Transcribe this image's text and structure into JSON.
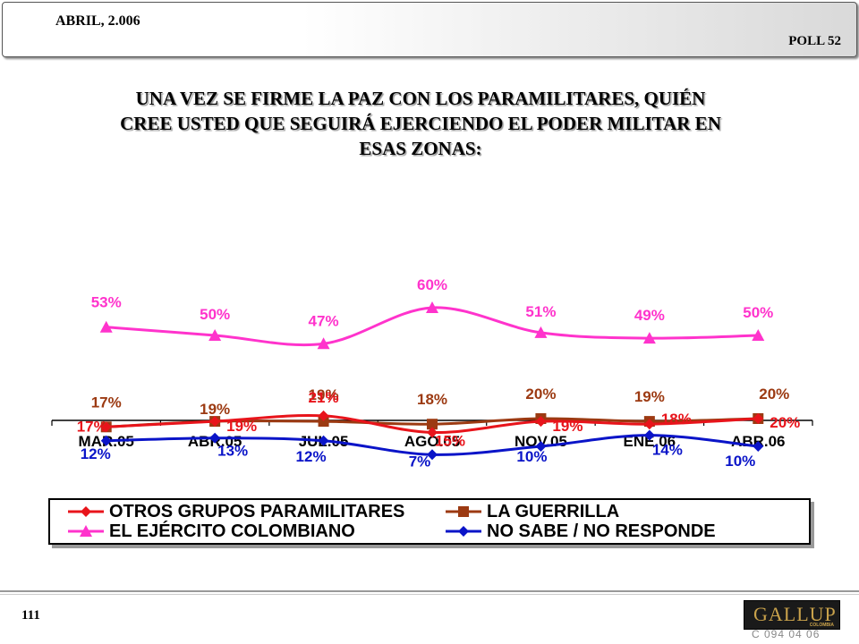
{
  "header": {
    "date": "ABRIL, 2.006",
    "poll": "POLL 52"
  },
  "title_lines": [
    "UNA VEZ SE FIRME LA PAZ CON LOS PARAMILITARES, QUIÉN",
    "CREE USTED QUE SEGUIRÁ EJERCIENDO EL PODER MILITAR EN",
    "ESAS ZONAS:"
  ],
  "chart_data": {
    "type": "line",
    "title": "UNA VEZ SE FIRME LA PAZ CON LOS PARAMILITARES, QUIÉN CREE USTED QUE SEGUIRÁ EJERCIENDO EL PODER MILITAR EN ESAS ZONAS:",
    "categories": [
      "MAR.05",
      "ABR.05",
      "JUL.05",
      "AGO.05",
      "NOV.05",
      "ENE.06",
      "ABR.06"
    ],
    "series": [
      {
        "name": "OTROS GRUPOS PARAMILITARES",
        "color": "#e8141b",
        "marker": "diamond",
        "values": [
          17,
          19,
          21,
          15,
          19,
          18,
          20
        ]
      },
      {
        "name": "LA GUERRILLA",
        "color": "#9c3a12",
        "marker": "square",
        "values": [
          17,
          19,
          19,
          18,
          20,
          19,
          20
        ]
      },
      {
        "name": "EL EJÉRCITO COLOMBIANO",
        "color": "#ff33cc",
        "marker": "triangle",
        "values": [
          53,
          50,
          47,
          60,
          51,
          49,
          50
        ]
      },
      {
        "name": "NO SABE / NO RESPONDE",
        "color": "#0a14c8",
        "marker": "diamond",
        "values": [
          12,
          13,
          12,
          7,
          10,
          14,
          10
        ]
      }
    ],
    "value_suffix": "%",
    "legend_position": "bottom",
    "grid": false
  },
  "footer": {
    "page": "111",
    "logo": "GALLUP",
    "logo_sub": "COLOMBIA",
    "code": "C 094 04 06"
  }
}
